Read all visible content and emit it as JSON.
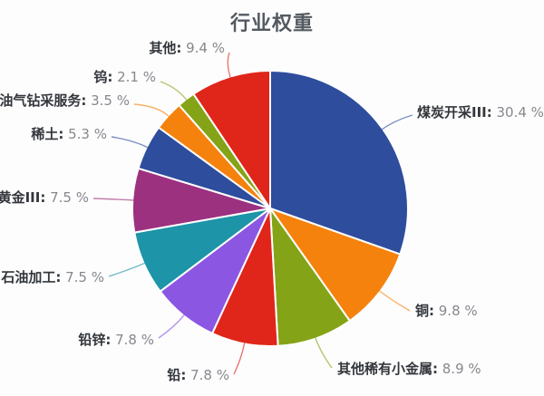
{
  "chart_data": {
    "type": "pie",
    "title": "行业权重",
    "unit": "%",
    "direction": "clockwise",
    "start_angle_deg": 0,
    "legend": "none",
    "label_format": "{name}: {value} %",
    "series": [
      {
        "name": "煤炭开采III",
        "value": 30.4,
        "color": "#2e4d9c"
      },
      {
        "name": "铜",
        "value": 9.8,
        "color": "#f5820d"
      },
      {
        "name": "其他稀有小金属",
        "value": 8.9,
        "color": "#84a317"
      },
      {
        "name": "铅",
        "value": 7.8,
        "color": "#e0251a"
      },
      {
        "name": "铅锌",
        "value": 7.8,
        "color": "#8b57e2"
      },
      {
        "name": "石油加工",
        "value": 7.5,
        "color": "#1d94a8"
      },
      {
        "name": "黄金III",
        "value": 7.5,
        "color": "#9c3180"
      },
      {
        "name": "稀土",
        "value": 5.3,
        "color": "#2e4d9c"
      },
      {
        "name": "油气钻采服务",
        "value": 3.5,
        "color": "#f5820d"
      },
      {
        "name": "钨",
        "value": 2.1,
        "color": "#84a317"
      },
      {
        "name": "其他",
        "value": 9.4,
        "color": "#e0251a"
      }
    ]
  },
  "colors": {
    "background": "#fdfdfd",
    "title_text": "#545a61",
    "label_name_text": "#33373c",
    "label_value_text": "#85888d",
    "slice_border": "#ffffff"
  }
}
